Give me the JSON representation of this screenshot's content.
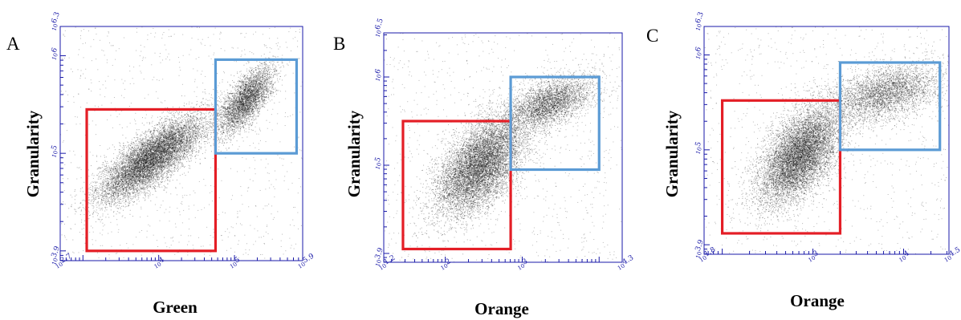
{
  "chart_data": [
    {
      "panel": "A",
      "type": "scatter",
      "xlabel": "Green",
      "ylabel": "Granularity",
      "x_scale": "log",
      "y_scale": "log",
      "xlim": [
        2.7,
        5.9
      ],
      "ylim": [
        3.9,
        6.3
      ],
      "x_ticks": [
        {
          "label": "2.7",
          "sup": true
        },
        {
          "label": "4",
          "sup": false
        },
        {
          "label": "5",
          "sup": false
        },
        {
          "label": "5.9",
          "sup": true
        }
      ],
      "y_ticks": [
        {
          "label": "3.9",
          "sup": true
        },
        {
          "label": "5",
          "sup": false
        },
        {
          "label": "6",
          "sup": false
        },
        {
          "label": "6.3",
          "sup": true
        }
      ],
      "populations": [
        {
          "cx": 3.9,
          "cy": 4.95,
          "sx": 0.35,
          "sy": 0.22,
          "rho": 0.8,
          "n": 9000,
          "color": "#000000"
        },
        {
          "cx": 5.15,
          "cy": 5.55,
          "sx": 0.18,
          "sy": 0.17,
          "rho": 0.7,
          "n": 3800,
          "color": "#000000"
        }
      ],
      "background_noise": 900,
      "gates": [
        {
          "name": "red",
          "color": "#e41e26",
          "x": [
            3.05,
            4.75
          ],
          "y": [
            4.0,
            5.45
          ]
        },
        {
          "name": "blue",
          "color": "#5b9bd5",
          "x": [
            4.75,
            5.82
          ],
          "y": [
            5.0,
            5.96
          ]
        }
      ]
    },
    {
      "panel": "B",
      "type": "scatter",
      "xlabel": "Orange",
      "ylabel": "Granularity",
      "x_scale": "log",
      "y_scale": "log",
      "xlim": [
        1.2,
        4.3
      ],
      "ylim": [
        3.9,
        6.5
      ],
      "x_ticks": [
        {
          "label": "1.2",
          "sup": true
        },
        {
          "label": "2",
          "sup": false
        },
        {
          "label": "3",
          "sup": false
        },
        {
          "label": "4.3",
          "sup": true
        }
      ],
      "y_ticks": [
        {
          "label": "3.9",
          "sup": true
        },
        {
          "label": "5",
          "sup": false
        },
        {
          "label": "6",
          "sup": false
        },
        {
          "label": "6.5",
          "sup": true
        }
      ],
      "populations": [
        {
          "cx": 2.45,
          "cy": 5.0,
          "sx": 0.28,
          "sy": 0.28,
          "rho": 0.55,
          "n": 9000,
          "color": "#000000"
        },
        {
          "cx": 3.35,
          "cy": 5.7,
          "sx": 0.28,
          "sy": 0.15,
          "rho": 0.55,
          "n": 3600,
          "color": "#000000"
        }
      ],
      "background_noise": 900,
      "gates": [
        {
          "name": "red",
          "color": "#e41e26",
          "x": [
            1.45,
            2.85
          ],
          "y": [
            4.05,
            5.5
          ]
        },
        {
          "name": "blue",
          "color": "#5b9bd5",
          "x": [
            2.85,
            4.0
          ],
          "y": [
            4.95,
            6.0
          ]
        }
      ]
    },
    {
      "panel": "C",
      "type": "scatter",
      "xlabel": "Orange",
      "ylabel": "Granularity",
      "x_scale": "log",
      "y_scale": "log",
      "xlim": [
        1.8,
        4.5
      ],
      "ylim": [
        3.9,
        6.3
      ],
      "x_ticks": [
        {
          "label": "1.8",
          "sup": true
        },
        {
          "label": "3",
          "sup": false
        },
        {
          "label": "4",
          "sup": false
        },
        {
          "label": "4.5",
          "sup": true
        }
      ],
      "y_ticks": [
        {
          "label": "3.9",
          "sup": true
        },
        {
          "label": "5",
          "sup": false
        },
        {
          "label": "6",
          "sup": false
        },
        {
          "label": "6.3",
          "sup": true
        }
      ],
      "populations": [
        {
          "cx": 2.85,
          "cy": 4.95,
          "sx": 0.22,
          "sy": 0.26,
          "rho": 0.55,
          "n": 9000,
          "color": "#000000"
        },
        {
          "cx": 3.8,
          "cy": 5.6,
          "sx": 0.3,
          "sy": 0.15,
          "rho": 0.4,
          "n": 3800,
          "color": "#000000"
        }
      ],
      "background_noise": 900,
      "gates": [
        {
          "name": "red",
          "color": "#e41e26",
          "x": [
            2.0,
            3.3
          ],
          "y": [
            4.12,
            5.52
          ]
        },
        {
          "name": "blue",
          "color": "#5b9bd5",
          "x": [
            3.3,
            4.4
          ],
          "y": [
            5.0,
            5.92
          ]
        }
      ]
    }
  ]
}
